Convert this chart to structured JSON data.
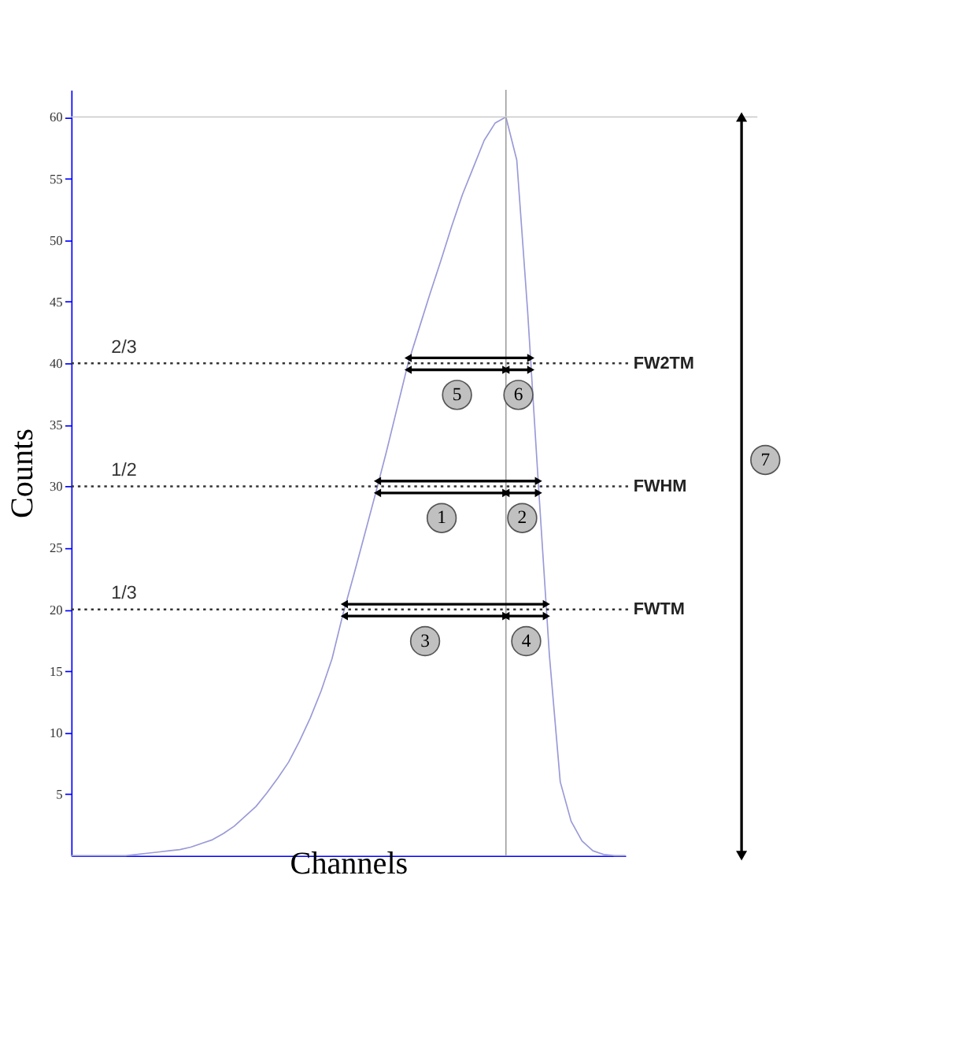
{
  "chart_data": {
    "type": "line",
    "xlabel": "Channels",
    "ylabel": "Counts",
    "ylim": [
      0,
      62.2
    ],
    "categories": [
      null,
      null,
      null,
      null,
      null,
      null,
      null,
      null,
      null,
      null,
      null,
      null,
      null,
      null,
      null,
      null,
      null,
      null,
      null,
      null,
      null,
      null,
      null,
      null,
      null,
      null,
      null,
      null,
      null,
      null,
      null,
      null,
      null,
      null,
      null,
      null,
      null,
      null,
      null,
      null,
      null,
      null,
      null,
      null,
      null,
      null,
      null,
      null,
      null,
      null,
      null,
      null
    ],
    "yticks": [
      5,
      10,
      15,
      20,
      25,
      30,
      35,
      40,
      45,
      50,
      55,
      60
    ],
    "tick_labels": "y",
    "grid": false,
    "marker": "none",
    "line_style": "solid",
    "series": [
      {
        "color": "#9a9ad8",
        "values": [
          0,
          0,
          0,
          0,
          0,
          0,
          0.1,
          0.2,
          0.3,
          0.4,
          0.5,
          0.7,
          1.0,
          1.3,
          1.8,
          2.4,
          3.2,
          4.0,
          5.1,
          6.3,
          7.6,
          9.3,
          11.2,
          13.4,
          16,
          19.6,
          22.8,
          26.1,
          29.4,
          32.8,
          36.4,
          40,
          42.8,
          45.6,
          48.3,
          51.1,
          53.7,
          55.9,
          58.1,
          59.5,
          60,
          56.5,
          44.2,
          30,
          16.3,
          6,
          2.8,
          1.2,
          0.4,
          0.1,
          0,
          0
        ]
      }
    ],
    "ref_lines": [
      {
        "axis": "y",
        "value": 60,
        "color": "#c8c8c8",
        "line_style": "solid"
      },
      {
        "axis": "y",
        "value": 40,
        "label": "FW2TM",
        "color": "#333333",
        "line_style": "dotted"
      },
      {
        "axis": "y",
        "value": 30,
        "label": "FWHM",
        "color": "#333333",
        "line_style": "dotted"
      },
      {
        "axis": "y",
        "value": 20,
        "label": "FWTM",
        "color": "#333333",
        "line_style": "dotted"
      }
    ],
    "annotations": [
      "2/3",
      "1/2",
      "1/3",
      "5",
      "6",
      "1",
      "2",
      "3",
      "4",
      "7"
    ]
  }
}
